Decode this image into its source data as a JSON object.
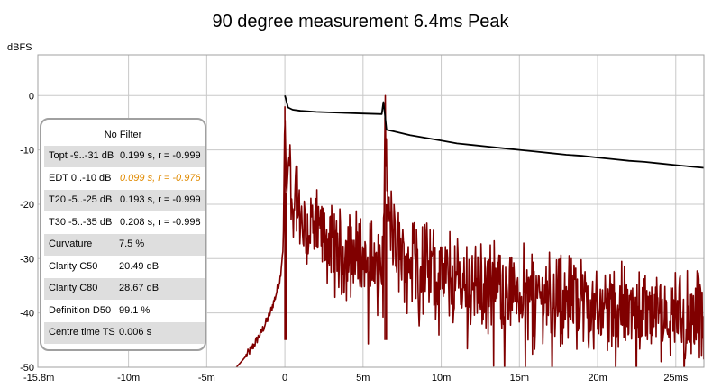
{
  "chart_data": {
    "type": "line",
    "title": "90 degree measurement 6.4ms Peak",
    "ylabel": "dBFS",
    "xlabel": "",
    "xlim": [
      -15.8,
      26.8
    ],
    "ylim": [
      -50,
      7.5
    ],
    "x_ticks": [
      {
        "value": -15.8,
        "label": "-15.8m"
      },
      {
        "value": -10,
        "label": "-10m"
      },
      {
        "value": -5,
        "label": "-5m"
      },
      {
        "value": 0,
        "label": "0"
      },
      {
        "value": 5,
        "label": "5m"
      },
      {
        "value": 10,
        "label": "10m"
      },
      {
        "value": 15,
        "label": "15m"
      },
      {
        "value": 20,
        "label": "20m"
      },
      {
        "value": 25,
        "label": "25ms"
      }
    ],
    "y_ticks": [
      {
        "value": 0,
        "label": "0"
      },
      {
        "value": -10,
        "label": "-10"
      },
      {
        "value": -20,
        "label": "-20"
      },
      {
        "value": -30,
        "label": "-30"
      },
      {
        "value": -40,
        "label": "-40"
      },
      {
        "value": -50,
        "label": "-50"
      }
    ],
    "grid": true,
    "colors": {
      "impulse": "#800000",
      "schroeder": "#000000",
      "grid": "#c8c8c8",
      "plot_border": "#a0a0a0"
    },
    "series": [
      {
        "key": "schroeder",
        "x": [
          0,
          0.05,
          0.2,
          0.5,
          1,
          2,
          3,
          4,
          5,
          6.2,
          6.3,
          6.4,
          6.5,
          7,
          8,
          9,
          10,
          11,
          12,
          13,
          14,
          15,
          16,
          17,
          18,
          19,
          20,
          21,
          22,
          23,
          24,
          25,
          26.8
        ],
        "y": [
          0,
          -0.5,
          -2.2,
          -2.6,
          -2.8,
          -3.0,
          -3.1,
          -3.2,
          -3.3,
          -3.4,
          -1.2,
          -3.5,
          -6.3,
          -6.6,
          -7.3,
          -7.8,
          -8.3,
          -8.8,
          -9.1,
          -9.4,
          -9.7,
          -10.0,
          -10.3,
          -10.6,
          -10.9,
          -11.1,
          -11.4,
          -11.7,
          -12.0,
          -12.2,
          -12.5,
          -12.8,
          -13.3
        ]
      },
      {
        "key": "impulse",
        "x": [
          -3.1,
          -2.5,
          -2.0,
          -1.5,
          -1.0,
          -0.6,
          -0.3,
          -0.1,
          0,
          0.1,
          0.25,
          0.5,
          0.7,
          1,
          1.5,
          2,
          2.5,
          3,
          4,
          5,
          6,
          6.3,
          6.4,
          6.6,
          7,
          8,
          9,
          10,
          11,
          12,
          14,
          16,
          18,
          20,
          22,
          24,
          26.8
        ],
        "y": [
          -50,
          -48,
          -46,
          -43.5,
          -40.5,
          -37,
          -33.5,
          -27.5,
          -2,
          -19,
          -11,
          -22,
          -16,
          -25,
          -24,
          -26,
          -25,
          -28,
          -29,
          -30,
          -31,
          -32,
          -4,
          -22,
          -28,
          -30,
          -32,
          -33,
          -34,
          -34.5,
          -35.5,
          -36.5,
          -37.5,
          -38.5,
          -39.5,
          -40,
          -41
        ],
        "noise_db": 9
      }
    ]
  },
  "panel": {
    "title": "No Filter",
    "rows": [
      {
        "label": "Topt -9..-31 dB",
        "value": "0.199 s,  r = -0.999"
      },
      {
        "label": "EDT  0..-10 dB",
        "value": "0.099 s,  r = -0.976",
        "highlight": "#e08a00"
      },
      {
        "label": "T20 -5..-25 dB",
        "value": "0.193 s,  r = -0.999"
      },
      {
        "label": "T30 -5..-35 dB",
        "value": "0.208 s,  r = -0.998"
      },
      {
        "label": "Curvature",
        "value": "7.5 %"
      },
      {
        "label": "Clarity C50",
        "value": "20.49 dB"
      },
      {
        "label": "Clarity C80",
        "value": "28.67 dB"
      },
      {
        "label": "Definition D50",
        "value": "99.1 %"
      },
      {
        "label": "Centre time TS",
        "value": "0.006 s"
      }
    ]
  }
}
